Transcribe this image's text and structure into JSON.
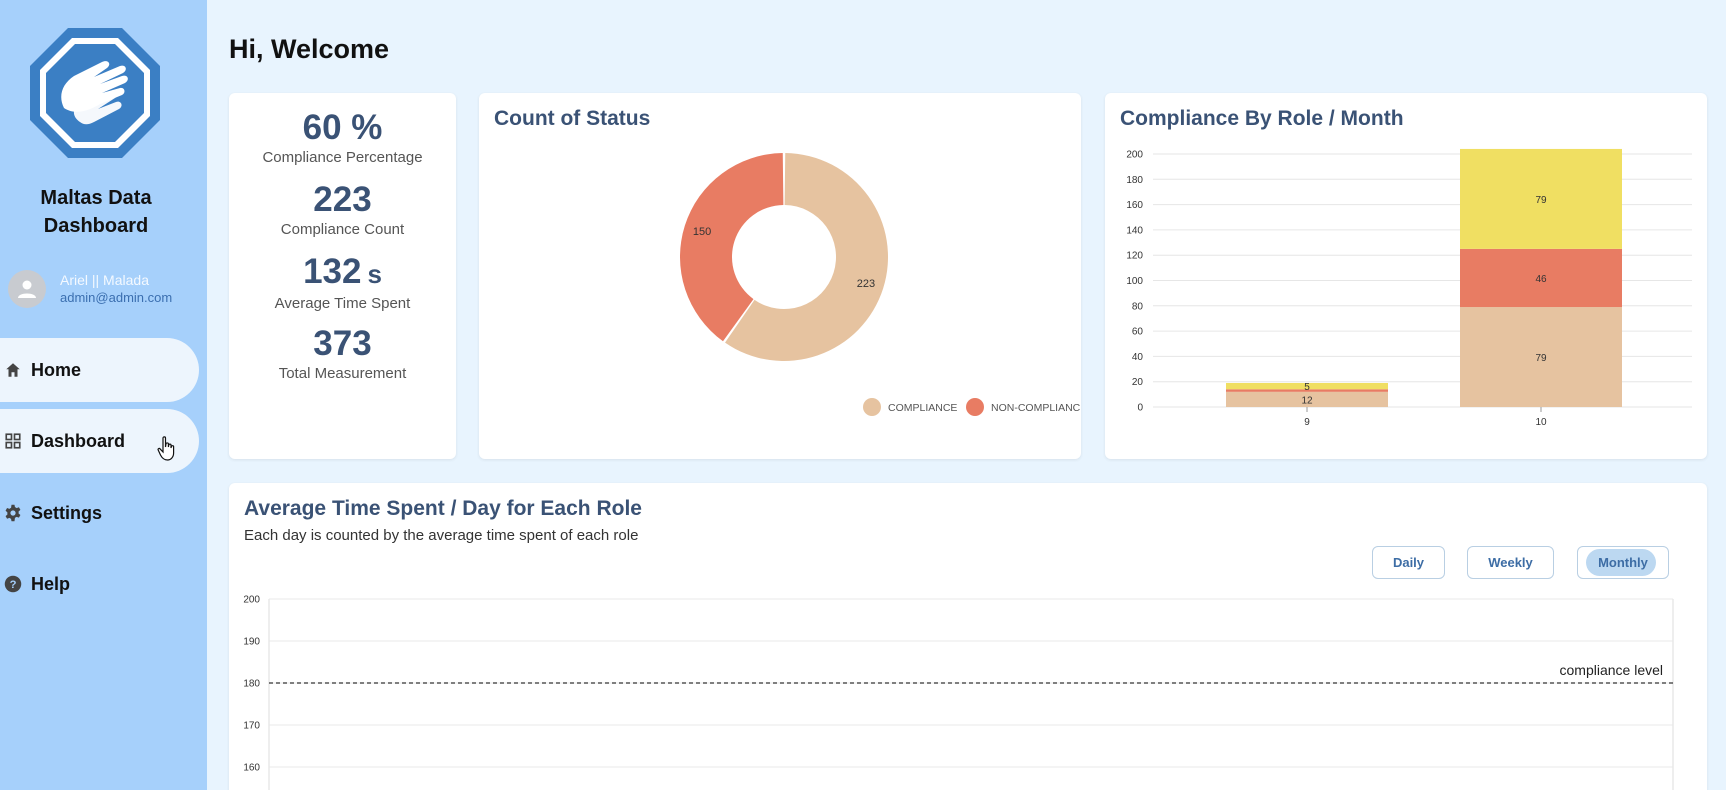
{
  "brand": {
    "line1": "Maltas Data",
    "line2": "Dashboard"
  },
  "user": {
    "name": "Ariel || Malada",
    "email": "admin@admin.com"
  },
  "nav": [
    {
      "label": "Home",
      "icon": "home-icon"
    },
    {
      "label": "Dashboard",
      "icon": "grid-icon"
    },
    {
      "label": "Settings",
      "icon": "gear-icon"
    },
    {
      "label": "Help",
      "icon": "help-icon"
    }
  ],
  "welcome": "Hi, Welcome",
  "kpis": [
    {
      "value": "60 %",
      "unit": "",
      "label": "Compliance Percentage"
    },
    {
      "value": "223",
      "unit": "",
      "label": "Compliance Count"
    },
    {
      "value": "132",
      "unit": "s",
      "label": "Average Time Spent"
    },
    {
      "value": "373",
      "unit": "",
      "label": "Total Measurement"
    }
  ],
  "colors": {
    "compliance": "#e6c3a0",
    "non_compliance": "#e87c63",
    "yellow": "#f0df62",
    "sidebar": "#a6d0fb"
  },
  "status_chart": {
    "title": "Count of Status",
    "chart_data": {
      "type": "pie",
      "labels": [
        "COMPLIANCE",
        "NON-COMPLIANCE"
      ],
      "values": [
        223,
        150
      ],
      "colors": [
        "#e6c3a0",
        "#e87c63"
      ]
    }
  },
  "role_chart": {
    "title": "Compliance By Role / Month",
    "chart_data": {
      "type": "bar",
      "stacked": true,
      "categories": [
        "9",
        "10"
      ],
      "series": [
        {
          "values": [
            12,
            79
          ],
          "color": "#e6c3a0"
        },
        {
          "values": [
            2,
            46
          ],
          "color": "#e87c63"
        },
        {
          "values": [
            5,
            79
          ],
          "color": "#f0df62"
        }
      ],
      "ylim": [
        0,
        200
      ],
      "yticks": [
        0,
        20,
        40,
        60,
        80,
        100,
        120,
        140,
        160,
        180,
        200
      ]
    }
  },
  "time_chart": {
    "title": "Average Time Spent / Day for Each Role",
    "subtitle": "Each day is counted by the average time spent of each role",
    "buttons": [
      "Daily",
      "Weekly",
      "Monthly"
    ],
    "active_button": "Monthly",
    "chart_data": {
      "type": "line",
      "yticks": [
        160,
        170,
        180,
        190,
        200
      ],
      "ylim": [
        155,
        200
      ],
      "reference_line": {
        "value": 180,
        "label": "compliance level"
      }
    }
  }
}
